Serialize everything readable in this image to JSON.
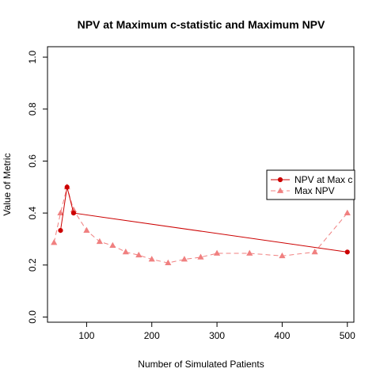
{
  "chart_data": {
    "type": "line",
    "title": "NPV at Maximum c-statistic and Maximum NPV",
    "xlabel": "Number of Simulated Patients",
    "ylabel": "Value of Metric",
    "xlim": [
      40,
      510
    ],
    "ylim": [
      -0.02,
      1.04
    ],
    "xticks": [
      100,
      200,
      300,
      400,
      500
    ],
    "yticks": [
      0.0,
      0.2,
      0.4,
      0.6,
      0.8,
      1.0
    ],
    "ytick_labels": [
      "0.0",
      "0.2",
      "0.4",
      "0.6",
      "0.8",
      "1.0"
    ],
    "grid": false,
    "legend_position": "right",
    "series": [
      {
        "name": "NPV at Max c",
        "color": "#cc0000",
        "line_style": "solid",
        "marker": "circle",
        "x": [
          60,
          70,
          80,
          500
        ],
        "y": [
          0.333,
          0.5,
          0.4,
          0.25
        ]
      },
      {
        "name": "Max NPV",
        "color": "#f08080",
        "line_style": "dashed",
        "marker": "triangle",
        "x": [
          50,
          60,
          70,
          80,
          100,
          120,
          140,
          160,
          180,
          200,
          225,
          250,
          275,
          300,
          350,
          400,
          450,
          500
        ],
        "y": [
          0.286,
          0.4,
          0.5,
          0.412,
          0.333,
          0.29,
          0.275,
          0.25,
          0.238,
          0.222,
          0.208,
          0.222,
          0.23,
          0.245,
          0.245,
          0.235,
          0.25,
          0.4
        ]
      }
    ]
  }
}
